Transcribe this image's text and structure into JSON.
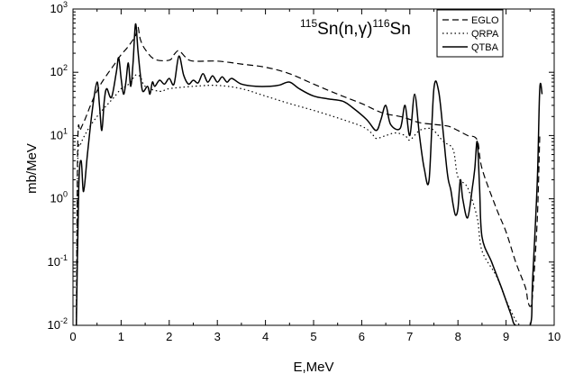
{
  "chart_data": {
    "type": "line",
    "title": "",
    "annotation": {
      "parts": [
        {
          "text": "115",
          "sup": true
        },
        {
          "text": "Sn(n,",
          "sup": false
        },
        {
          "text": "γ",
          "sup": false,
          "greek": true
        },
        {
          "text": ")",
          "sup": false
        },
        {
          "text": "116",
          "sup": true
        },
        {
          "text": "Sn",
          "sup": false
        }
      ]
    },
    "xlabel": "E,MeV",
    "ylabel": "mb/MeV",
    "xlim": [
      0,
      10
    ],
    "ylim": [
      0.01,
      1000
    ],
    "yscale": "log",
    "grid": false,
    "legend_position": "top-right",
    "x_ticks": [
      {
        "value": 0,
        "label": "0"
      },
      {
        "value": 1,
        "label": "1"
      },
      {
        "value": 2,
        "label": "2"
      },
      {
        "value": 3,
        "label": "3"
      },
      {
        "value": 4,
        "label": "4"
      },
      {
        "value": 5,
        "label": "5"
      },
      {
        "value": 6,
        "label": "6"
      },
      {
        "value": 7,
        "label": "7"
      },
      {
        "value": 8,
        "label": "8"
      },
      {
        "value": 9,
        "label": "9"
      },
      {
        "value": 10,
        "label": "10"
      }
    ],
    "y_ticks": [
      {
        "value": 1000,
        "base": "10",
        "exp": "3"
      },
      {
        "value": 100,
        "base": "10",
        "exp": "2"
      },
      {
        "value": 10,
        "base": "10",
        "exp": "1"
      },
      {
        "value": 1,
        "base": "10",
        "exp": "0"
      },
      {
        "value": 0.1,
        "base": "10",
        "exp": "-1"
      },
      {
        "value": 0.01,
        "base": "10",
        "exp": "-2"
      }
    ],
    "series": [
      {
        "name": "EGLO",
        "dash": "dashed",
        "x": [
          0.07,
          0.1,
          0.15,
          0.25,
          0.4,
          0.55,
          0.7,
          0.85,
          1.0,
          1.1,
          1.2,
          1.3,
          1.35,
          1.4,
          1.5,
          1.7,
          2.0,
          2.1,
          2.2,
          2.35,
          2.5,
          3.0,
          3.5,
          4.0,
          4.5,
          5.0,
          5.5,
          6.0,
          6.3,
          6.5,
          6.8,
          7.0,
          7.2,
          7.5,
          7.8,
          8.0,
          8.2,
          8.4,
          8.5,
          8.8,
          9.0,
          9.2,
          9.4,
          9.45,
          9.5,
          9.55,
          9.65,
          9.7
        ],
        "y": [
          0.01,
          8,
          12,
          18,
          35,
          60,
          90,
          130,
          190,
          230,
          290,
          380,
          520,
          330,
          230,
          160,
          155,
          190,
          220,
          170,
          150,
          150,
          135,
          120,
          95,
          65,
          45,
          32,
          25,
          22,
          20,
          18,
          16,
          15,
          14,
          12,
          10,
          8.5,
          3,
          0.7,
          0.3,
          0.1,
          0.04,
          0.025,
          0.02,
          0.03,
          0.5,
          10
        ]
      },
      {
        "name": "QRPA",
        "dash": "dotted",
        "x": [
          0.07,
          0.1,
          0.15,
          0.3,
          0.5,
          0.7,
          0.85,
          1.0,
          1.1,
          1.2,
          1.3,
          1.4,
          1.5,
          1.8,
          2.0,
          2.5,
          3.0,
          3.5,
          4.0,
          4.5,
          5.0,
          5.5,
          6.0,
          6.2,
          6.3,
          6.5,
          6.7,
          6.9,
          7.0,
          7.2,
          7.4,
          7.5,
          7.7,
          7.9,
          8.0,
          8.2,
          8.4,
          8.5,
          8.8,
          9.0,
          9.2,
          9.3
        ],
        "y": [
          0.01,
          4,
          7,
          12,
          20,
          30,
          40,
          55,
          60,
          70,
          90,
          85,
          60,
          50,
          55,
          60,
          62,
          55,
          42,
          32,
          25,
          19,
          14,
          11,
          9,
          10,
          11,
          10,
          8.5,
          12,
          13,
          12,
          8,
          6,
          2.2,
          1.5,
          0.5,
          0.15,
          0.06,
          0.025,
          0.012,
          0.01
        ]
      },
      {
        "name": "QTBA",
        "dash": "solid",
        "x": [
          0.07,
          0.12,
          0.17,
          0.22,
          0.3,
          0.4,
          0.5,
          0.55,
          0.6,
          0.65,
          0.7,
          0.8,
          0.9,
          0.95,
          1.0,
          1.05,
          1.1,
          1.15,
          1.2,
          1.25,
          1.3,
          1.35,
          1.4,
          1.45,
          1.55,
          1.6,
          1.65,
          1.7,
          1.8,
          1.9,
          2.0,
          2.1,
          2.2,
          2.3,
          2.4,
          2.5,
          2.6,
          2.7,
          2.8,
          2.9,
          3.0,
          3.1,
          3.2,
          3.3,
          3.5,
          3.8,
          4.1,
          4.3,
          4.5,
          4.7,
          5.0,
          5.3,
          5.6,
          5.8,
          6.1,
          6.3,
          6.4,
          6.5,
          6.6,
          6.8,
          6.9,
          7.0,
          7.1,
          7.2,
          7.3,
          7.4,
          7.5,
          7.6,
          7.7,
          7.75,
          7.8,
          7.85,
          7.9,
          7.95,
          8.0,
          8.05,
          8.1,
          8.2,
          8.3,
          8.35,
          8.4,
          8.45,
          8.5,
          8.7,
          8.9,
          9.1,
          9.2,
          9.5,
          9.55,
          9.65,
          9.7,
          9.75
        ],
        "y": [
          0.01,
          1.5,
          4,
          1.3,
          5,
          25,
          70,
          30,
          12,
          35,
          55,
          40,
          100,
          170,
          80,
          45,
          70,
          140,
          60,
          150,
          580,
          220,
          90,
          50,
          60,
          45,
          70,
          60,
          75,
          65,
          80,
          65,
          180,
          90,
          65,
          75,
          68,
          95,
          70,
          88,
          70,
          85,
          70,
          80,
          65,
          60,
          60,
          63,
          70,
          55,
          42,
          38,
          35,
          28,
          18,
          12,
          18,
          30,
          15,
          13,
          30,
          10,
          45,
          10,
          3,
          2,
          55,
          50,
          10,
          4,
          2,
          1.4,
          0.8,
          0.55,
          0.7,
          2,
          1,
          0.5,
          1.5,
          3,
          8,
          1.5,
          0.25,
          0.1,
          0.04,
          0.015,
          0.01,
          0.01,
          0.05,
          2,
          55,
          45
        ]
      }
    ]
  }
}
